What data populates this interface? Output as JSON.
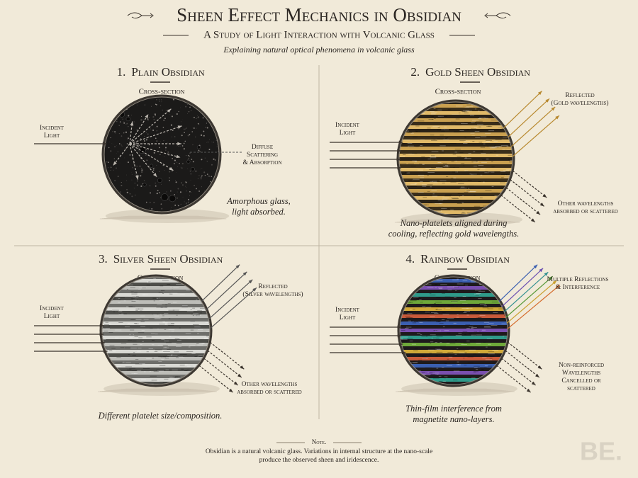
{
  "header": {
    "title": "Sheen Effect Mechanics in Obsidian",
    "subtitle": "A Study of Light Interaction with Volcanic Glass",
    "tagline": "Explaining natural optical phenomena in volcanic glass"
  },
  "panels": [
    {
      "number": "1.",
      "title": "Plain Obsidian",
      "section": "Cross-section",
      "incident": [
        "Incident",
        "Light"
      ],
      "side_label": [
        "Diffuse",
        "Scattering",
        "& Absorption"
      ],
      "caption": [
        "Amorphous glass,",
        "light absorbed."
      ]
    },
    {
      "number": "2.",
      "title": "Gold Sheen Obsidian",
      "section": "Cross-section",
      "incident": [
        "Incident",
        "Light"
      ],
      "reflected": [
        "Reflected",
        "(Gold wavelengths)"
      ],
      "other": [
        "Other wavelengths",
        "absorbed or scattered"
      ],
      "caption": [
        "Nano-platelets aligned during",
        "cooling, reflecting gold wavelengths."
      ]
    },
    {
      "number": "3.",
      "title": "Silver Sheen Obsidian",
      "section": "Cross-section",
      "incident": [
        "Incident",
        "Light"
      ],
      "reflected": [
        "Reflected",
        "(Silver wavelengths)"
      ],
      "other": [
        "Other wavelengths",
        "absorbed or scattered"
      ],
      "caption": [
        "Different platelet size/composition."
      ]
    },
    {
      "number": "4.",
      "title": "Rainbow Obsidian",
      "section": "Cross-section",
      "incident": [
        "Incident",
        "Light"
      ],
      "reflected": [
        "Multiple Reflections",
        "& Interference"
      ],
      "other": [
        "Non-reinforced",
        "Wavelengths",
        "Cancelled or",
        "scattered"
      ],
      "caption": [
        "Thin-film interference from",
        "magnetite nano-layers."
      ]
    }
  ],
  "note": {
    "heading": "Note.",
    "text": [
      "Obsidian is a natural volcanic glass.  Variations in internal structure at the nano-scale",
      "produce the observed sheen and iridescence."
    ]
  },
  "logo": "BE."
}
